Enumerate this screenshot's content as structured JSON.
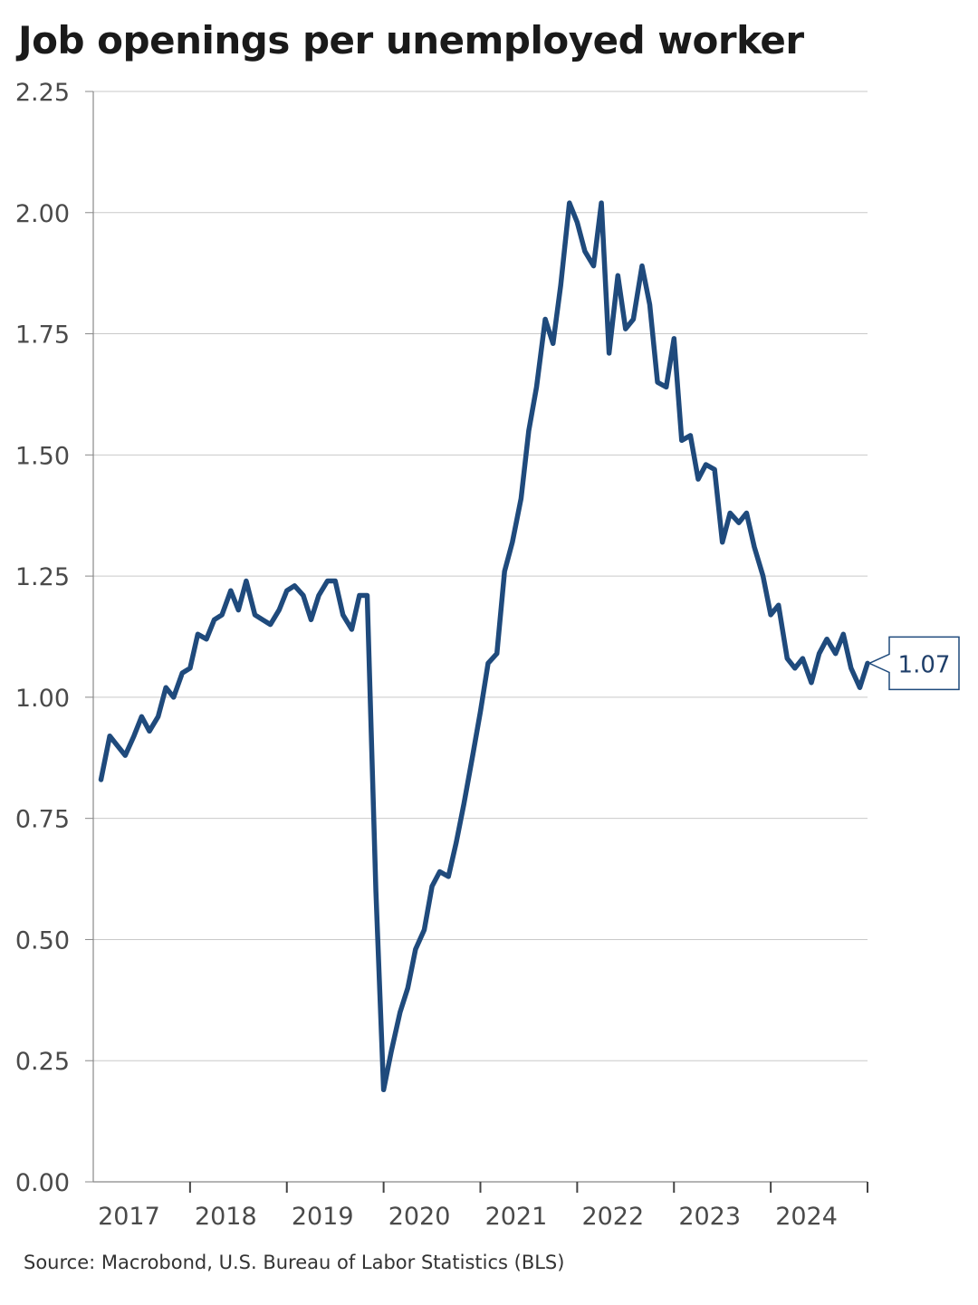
{
  "chart_data": {
    "type": "line",
    "title": "Job openings per unemployed worker",
    "source": "Source: Macrobond, U.S. Bureau of Labor Statistics (BLS)",
    "xlabel": "",
    "ylabel": "",
    "ylim": [
      0,
      2.25
    ],
    "xlim": [
      2017.0,
      2025.0
    ],
    "yticks": [
      "0.00",
      "0.25",
      "0.50",
      "0.75",
      "1.00",
      "1.25",
      "1.50",
      "1.75",
      "2.00",
      "2.25"
    ],
    "xticks": [
      "2017",
      "2018",
      "2019",
      "2020",
      "2021",
      "2022",
      "2023",
      "2024"
    ],
    "grid": true,
    "legend": "none",
    "last_value_label": "1.07",
    "series": [
      {
        "color": "#1f4a7c",
        "x": [
          2017.08,
          2017.17,
          2017.25,
          2017.33,
          2017.42,
          2017.5,
          2017.58,
          2017.67,
          2017.75,
          2017.83,
          2017.92,
          2018.0,
          2018.08,
          2018.17,
          2018.25,
          2018.33,
          2018.42,
          2018.5,
          2018.58,
          2018.67,
          2018.75,
          2018.83,
          2018.92,
          2019.0,
          2019.08,
          2019.17,
          2019.25,
          2019.33,
          2019.42,
          2019.5,
          2019.58,
          2019.67,
          2019.75,
          2019.83,
          2019.92,
          2020.0,
          2020.08,
          2020.17,
          2020.25,
          2020.33,
          2020.42,
          2020.5,
          2020.58,
          2020.67,
          2020.75,
          2020.83,
          2020.92,
          2021.0,
          2021.08,
          2021.17,
          2021.25,
          2021.33,
          2021.42,
          2021.5,
          2021.58,
          2021.67,
          2021.75,
          2021.83,
          2021.92,
          2022.0,
          2022.08,
          2022.17,
          2022.25,
          2022.33,
          2022.42,
          2022.5,
          2022.58,
          2022.67,
          2022.75,
          2022.83,
          2022.92,
          2023.0,
          2023.08,
          2023.17,
          2023.25,
          2023.33,
          2023.42,
          2023.5,
          2023.58,
          2023.67,
          2023.75,
          2023.83,
          2023.92,
          2024.0,
          2024.08,
          2024.17,
          2024.25,
          2024.33,
          2024.42,
          2024.5,
          2024.58,
          2024.67,
          2024.75,
          2024.83,
          2024.92,
          2025.0
        ],
        "values": [
          0.83,
          0.92,
          0.9,
          0.88,
          0.92,
          0.96,
          0.93,
          0.96,
          1.02,
          1.0,
          1.05,
          1.06,
          1.13,
          1.12,
          1.16,
          1.17,
          1.22,
          1.18,
          1.24,
          1.17,
          1.16,
          1.15,
          1.18,
          1.22,
          1.23,
          1.21,
          1.16,
          1.21,
          1.24,
          1.24,
          1.17,
          1.14,
          1.21,
          1.21,
          0.6,
          0.19,
          0.27,
          0.35,
          0.4,
          0.48,
          0.52,
          0.61,
          0.64,
          0.63,
          0.7,
          0.78,
          0.88,
          0.97,
          1.07,
          1.09,
          1.26,
          1.32,
          1.41,
          1.55,
          1.64,
          1.78,
          1.73,
          1.85,
          2.02,
          1.98,
          1.92,
          1.89,
          2.02,
          1.71,
          1.87,
          1.76,
          1.78,
          1.89,
          1.81,
          1.65,
          1.64,
          1.74,
          1.53,
          1.54,
          1.45,
          1.48,
          1.47,
          1.32,
          1.38,
          1.36,
          1.38,
          1.31,
          1.25,
          1.17,
          1.19,
          1.08,
          1.06,
          1.08,
          1.03,
          1.09,
          1.12,
          1.09,
          1.13,
          1.06,
          1.02,
          1.07
        ]
      }
    ]
  }
}
